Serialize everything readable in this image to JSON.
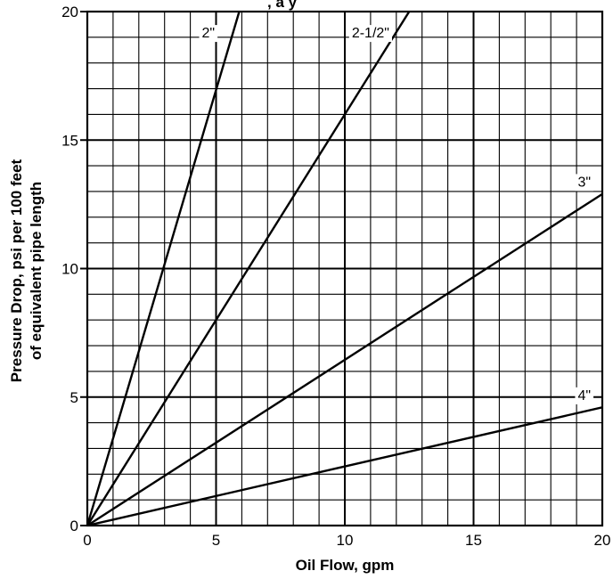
{
  "chart_data": {
    "type": "line",
    "title": "",
    "top_caption_partial": ", a        y",
    "xlabel": "Oil Flow, gpm",
    "ylabel_line1": "Pressure Drop, psi per 100 feet",
    "ylabel_line2": "of equivalent pipe length",
    "xlim": [
      0,
      20
    ],
    "ylim": [
      0,
      20
    ],
    "x_ticks": [
      0,
      5,
      10,
      15,
      20
    ],
    "y_ticks": [
      0,
      5,
      10,
      15,
      20
    ],
    "x_minor_step": 1,
    "y_minor_step": 1,
    "grid": true,
    "series": [
      {
        "name": "2\"",
        "x": [
          0,
          5.9
        ],
        "y": [
          0,
          20
        ]
      },
      {
        "name": "2-1/2\"",
        "x": [
          0,
          12.5
        ],
        "y": [
          0,
          20
        ]
      },
      {
        "name": "3\"",
        "x": [
          0,
          20
        ],
        "y": [
          0,
          12.9
        ]
      },
      {
        "name": "4\"",
        "x": [
          0,
          20
        ],
        "y": [
          0,
          4.6
        ]
      }
    ],
    "series_label_positions": [
      {
        "x": 4.7,
        "y": 19.2
      },
      {
        "x": 11.0,
        "y": 19.2
      },
      {
        "x": 19.3,
        "y": 13.4
      },
      {
        "x": 19.3,
        "y": 5.1
      }
    ]
  }
}
